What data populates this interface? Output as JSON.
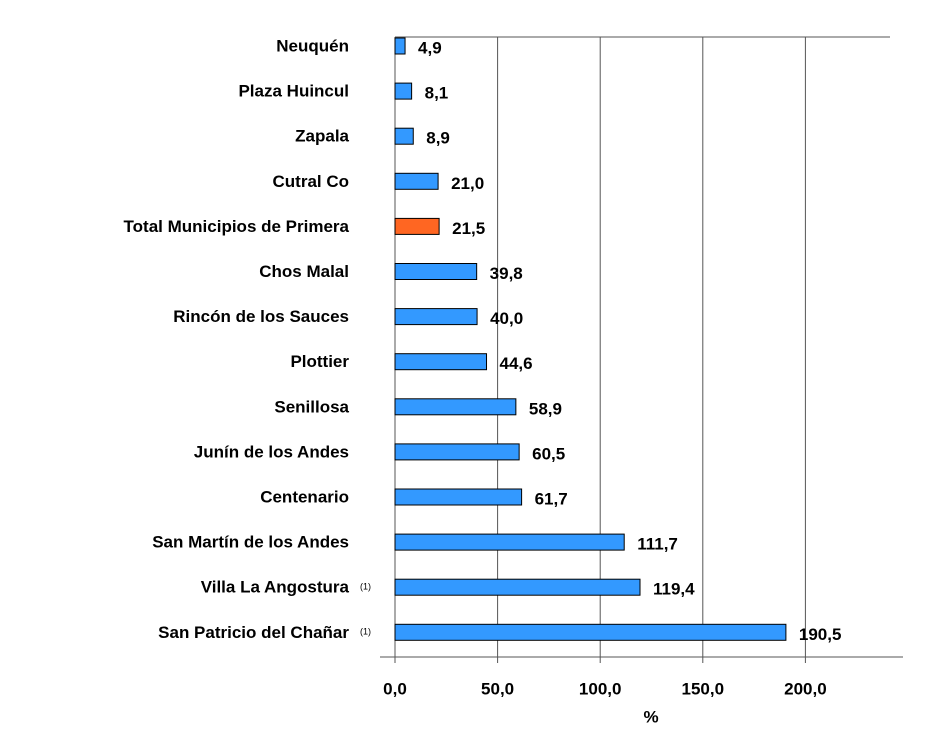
{
  "chart_data": {
    "type": "hbar",
    "categories": [
      "Neuquén",
      "Plaza Huincul",
      "Zapala",
      "Cutral Co",
      "Total Municipios de Primera",
      "Chos Malal",
      "Rincón de los Sauces",
      "Plottier",
      "Senillosa",
      "Junín de los Andes",
      "Centenario",
      "San Martín de los Andes",
      "Villa La Angostura",
      "San Patricio del Chañar"
    ],
    "category_notes": [
      null,
      null,
      null,
      null,
      null,
      null,
      null,
      null,
      null,
      null,
      null,
      null,
      "(1)",
      "(1)"
    ],
    "values": [
      4.9,
      8.1,
      8.9,
      21.0,
      21.5,
      39.8,
      40.0,
      44.6,
      58.9,
      60.5,
      61.7,
      111.7,
      119.4,
      190.5
    ],
    "value_labels": [
      "4,9",
      "8,1",
      "8,9",
      "21,0",
      "21,5",
      "39,8",
      "40,0",
      "44,6",
      "58,9",
      "60,5",
      "61,7",
      "111,7",
      "119,4",
      "190,5"
    ],
    "colors": [
      "#3399ff",
      "#3399ff",
      "#3399ff",
      "#3399ff",
      "#ff6622",
      "#3399ff",
      "#3399ff",
      "#3399ff",
      "#3399ff",
      "#3399ff",
      "#3399ff",
      "#3399ff",
      "#3399ff",
      "#3399ff"
    ],
    "xlabel": "%",
    "xlim": [
      0,
      250
    ],
    "xticks": [
      {
        "value": 0,
        "label": "0,0"
      },
      {
        "value": 50,
        "label": "50,0"
      },
      {
        "value": 100,
        "label": "100,0"
      },
      {
        "value": 150,
        "label": "150,0"
      },
      {
        "value": 200,
        "label": "200,0"
      }
    ],
    "grid": true
  }
}
